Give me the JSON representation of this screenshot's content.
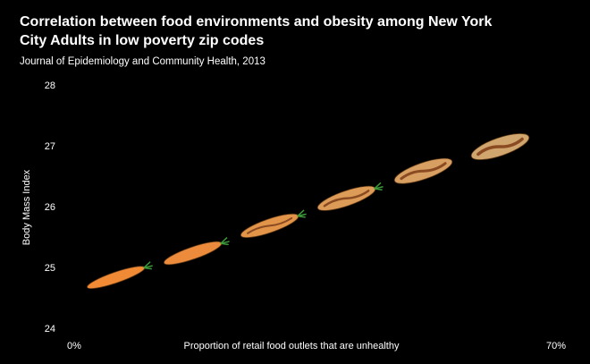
{
  "chart_data": {
    "type": "scatter",
    "title": "Correlation between food environments and obesity among New York City Adults in low poverty zip codes",
    "subtitle": "Journal of Epidemiology and Community Health, 2013",
    "x_label": "Proportion of  retail food outlets that are unhealthy",
    "y_label": "Body Mass Index",
    "x": [
      7,
      18,
      29,
      40,
      51,
      62
    ],
    "values": [
      24.85,
      25.25,
      25.7,
      26.15,
      26.6,
      27.0
    ],
    "colors": [
      "#f08a35",
      "#ec8b3c",
      "#e29449",
      "#dc9b57",
      "#d7a062",
      "#d1a66e"
    ],
    "xlim": [
      0,
      70
    ],
    "xticks": [
      {
        "value": 0,
        "label": "0%"
      },
      {
        "value": 70,
        "label": "70%"
      }
    ],
    "ylim": [
      24,
      28
    ],
    "yticks": [
      24,
      25,
      26,
      27,
      28
    ],
    "grid": false
  }
}
